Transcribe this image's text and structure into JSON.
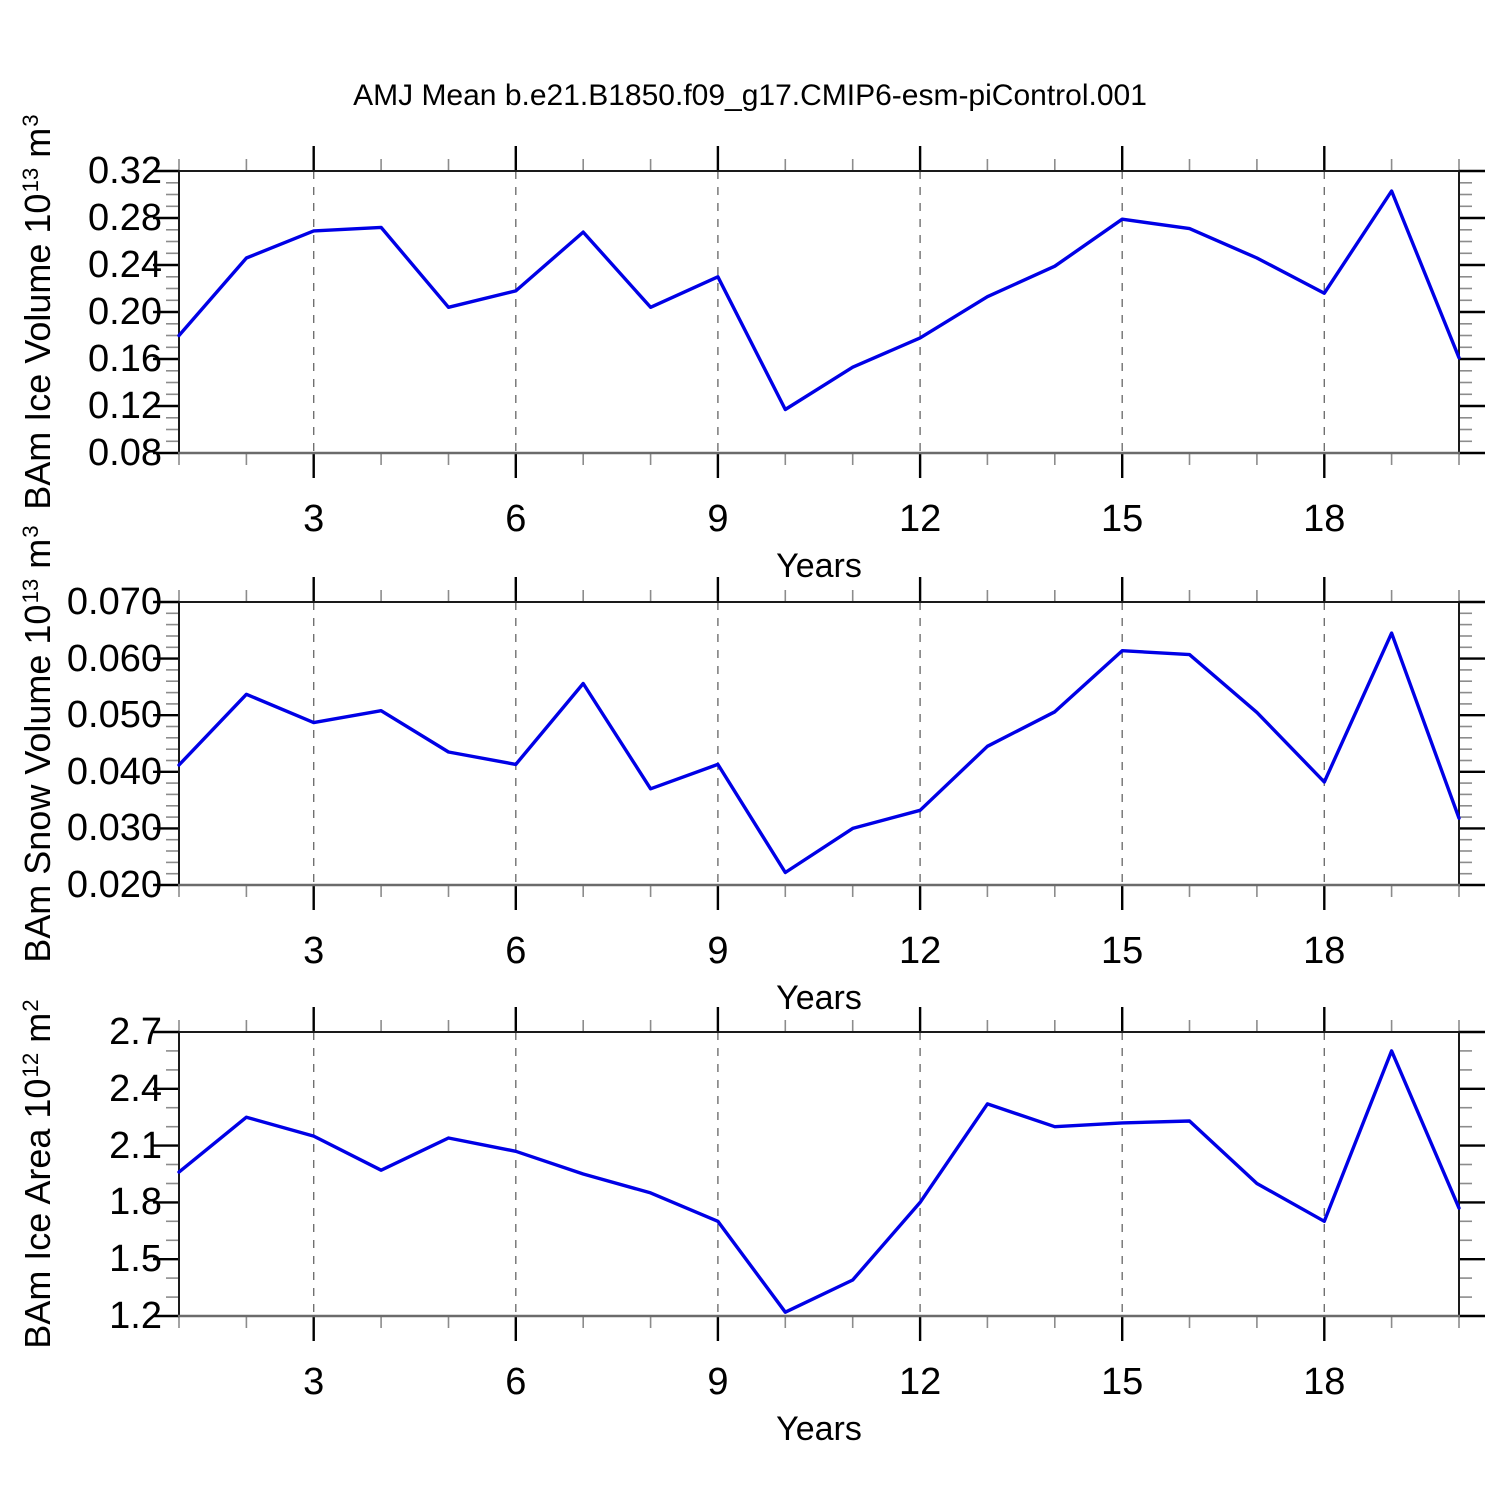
{
  "title": "AMJ Mean b.e21.B1850.f09_g17.CMIP6-esm-piControl.001",
  "styles": {
    "line_color": "#0000e6",
    "background": "#ffffff",
    "text_color": "#000000",
    "border_color": "#1a1a1a",
    "bottom_border_color": "#6b6b6b",
    "major_tick_color": "#000000",
    "minor_tick_color": "#8c8c8c",
    "grid_color": "#707070"
  },
  "chart_data": [
    {
      "type": "line",
      "name": "bam-ice-volume",
      "xlabel": "Years",
      "ylabel": "BAm Ice Volume 10^13 m^3",
      "ylabel_parts": [
        [
          "BAm Ice Volume 10",
          false
        ],
        [
          "13",
          true
        ],
        [
          " m",
          false
        ],
        [
          "3",
          true
        ]
      ],
      "x": [
        1,
        2,
        3,
        4,
        5,
        6,
        7,
        8,
        9,
        10,
        11,
        12,
        13,
        14,
        15,
        16,
        17,
        18,
        19,
        20
      ],
      "values": [
        0.18,
        0.246,
        0.269,
        0.272,
        0.204,
        0.218,
        0.268,
        0.204,
        0.23,
        0.117,
        0.153,
        0.178,
        0.213,
        0.239,
        0.279,
        0.271,
        0.246,
        0.216,
        0.303,
        0.161
      ],
      "ylim": [
        0.08,
        0.32
      ],
      "ytick_step": 0.04,
      "yminor_step": 0.01,
      "y_decimals": 2,
      "xticks_major": [
        3,
        6,
        9,
        12,
        15,
        18
      ],
      "xminor_step": 1,
      "grid": "vertical-dashed-at-major-xticks",
      "legend": "none"
    },
    {
      "type": "line",
      "name": "bam-snow-volume",
      "xlabel": "Years",
      "ylabel": "BAm Snow Volume 10^13 m^3",
      "ylabel_parts": [
        [
          "BAm Snow Volume 10",
          false
        ],
        [
          "13",
          true
        ],
        [
          " m",
          false
        ],
        [
          "3",
          true
        ]
      ],
      "x": [
        1,
        2,
        3,
        4,
        5,
        6,
        7,
        8,
        9,
        10,
        11,
        12,
        13,
        14,
        15,
        16,
        17,
        18,
        19,
        20
      ],
      "values": [
        0.0412,
        0.0537,
        0.0487,
        0.0508,
        0.0435,
        0.0413,
        0.0556,
        0.037,
        0.0413,
        0.0222,
        0.03,
        0.0332,
        0.0445,
        0.0506,
        0.0614,
        0.0607,
        0.0505,
        0.0382,
        0.0645,
        0.0318
      ],
      "ylim": [
        0.02,
        0.07
      ],
      "ytick_step": 0.01,
      "yminor_step": 0.002,
      "y_decimals": 3,
      "xticks_major": [
        3,
        6,
        9,
        12,
        15,
        18
      ],
      "xminor_step": 1,
      "grid": "vertical-dashed-at-major-xticks",
      "legend": "none"
    },
    {
      "type": "line",
      "name": "bam-ice-area",
      "xlabel": "Years",
      "ylabel": "BAm Ice Area 10^12 m^2",
      "ylabel_parts": [
        [
          "BAm Ice Area 10",
          false
        ],
        [
          "12",
          true
        ],
        [
          " m",
          false
        ],
        [
          "2",
          true
        ]
      ],
      "x": [
        1,
        2,
        3,
        4,
        5,
        6,
        7,
        8,
        9,
        10,
        11,
        12,
        13,
        14,
        15,
        16,
        17,
        18,
        19,
        20
      ],
      "values": [
        1.96,
        2.25,
        2.15,
        1.97,
        2.14,
        2.07,
        1.95,
        1.85,
        1.7,
        1.22,
        1.39,
        1.8,
        2.32,
        2.2,
        2.22,
        2.23,
        1.9,
        1.7,
        2.6,
        1.77
      ],
      "ylim": [
        1.2,
        2.7
      ],
      "ytick_step": 0.3,
      "yminor_step": 0.1,
      "y_decimals": 1,
      "xticks_major": [
        3,
        6,
        9,
        12,
        15,
        18
      ],
      "xminor_step": 1,
      "grid": "vertical-dashed-at-major-xticks",
      "legend": "none"
    }
  ]
}
